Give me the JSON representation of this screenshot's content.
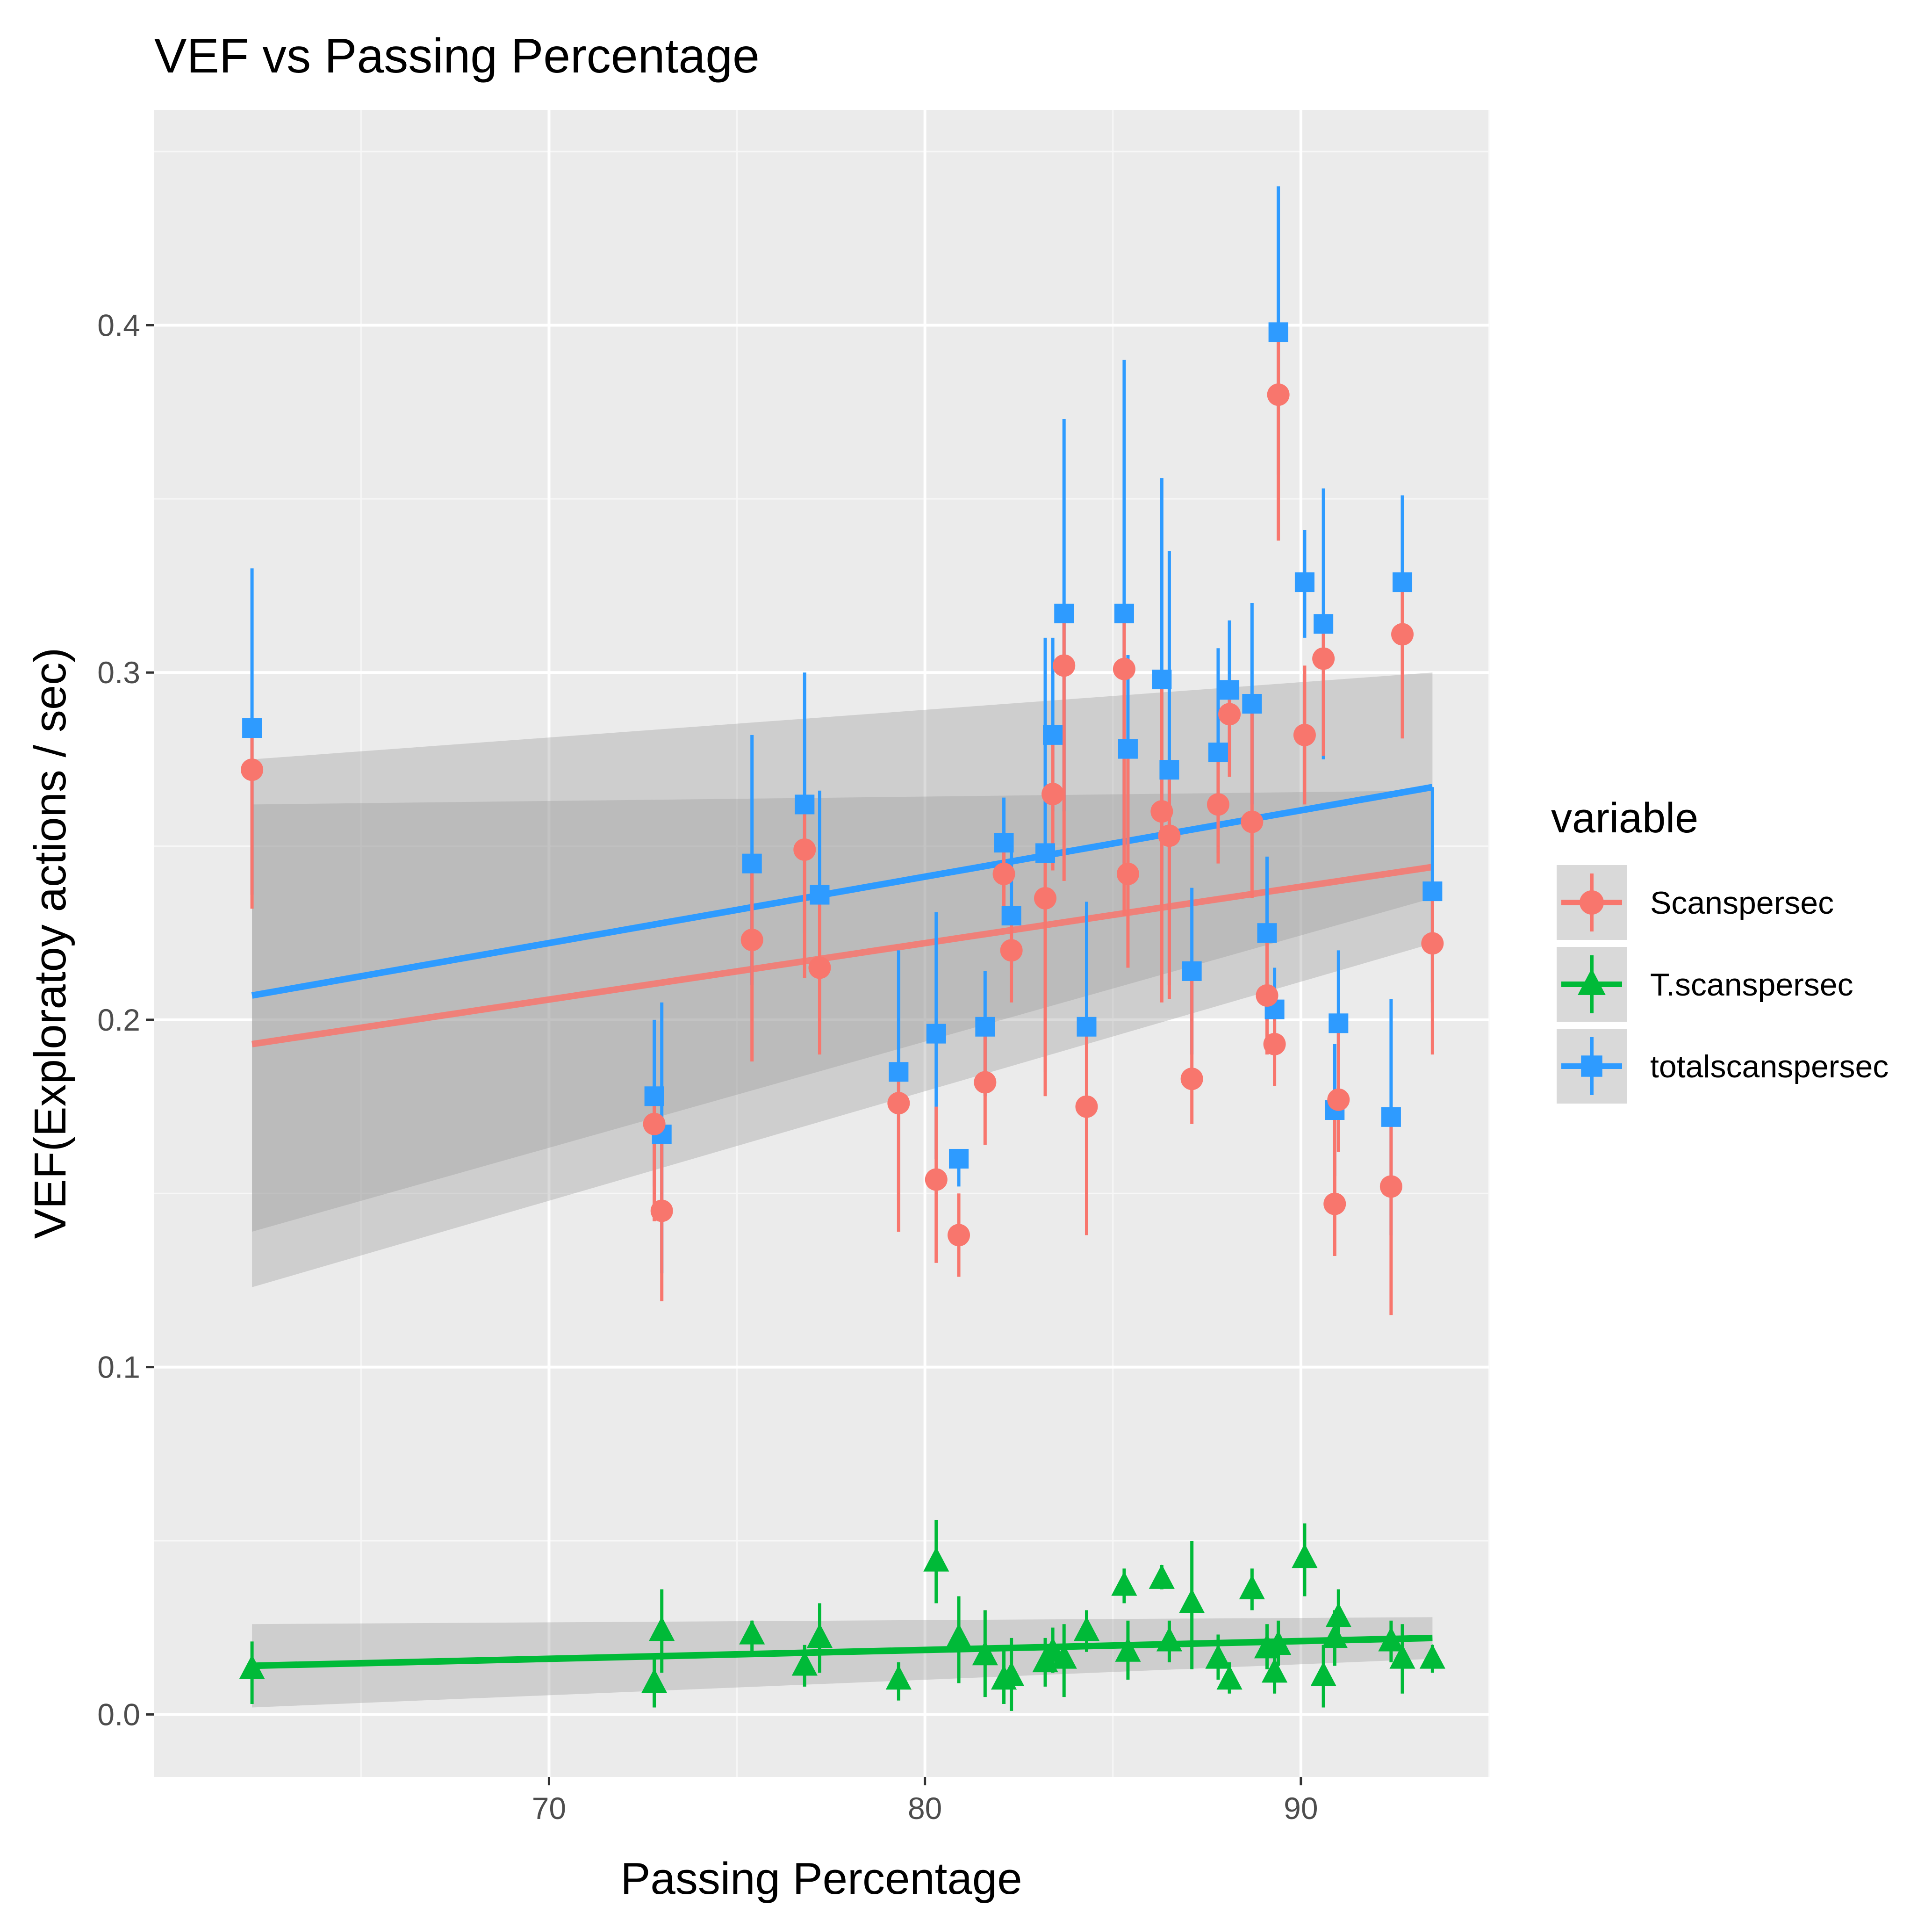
{
  "chart_data": {
    "type": "scatter",
    "title": "VEF vs Passing Percentage",
    "xlabel": "Passing Percentage",
    "ylabel": "VEF(Exploratoy actions / sec)",
    "xlim": [
      59.5,
      95.0
    ],
    "ylim": [
      -0.018,
      0.462
    ],
    "x_ticks": [
      70,
      80,
      90
    ],
    "y_ticks": [
      0.0,
      0.1,
      0.2,
      0.3,
      0.4
    ],
    "x_tick_labels": [
      "70",
      "80",
      "90"
    ],
    "y_tick_labels": [
      "0.0",
      "0.1",
      "0.2",
      "0.3",
      "0.4"
    ],
    "grid": true,
    "legend": {
      "title": "variable",
      "position": "right"
    },
    "series": [
      {
        "name": "totalscanspersec",
        "color": "#2e9bff",
        "shape": "square",
        "trend": {
          "x": [
            62.1,
            93.5
          ],
          "y": [
            0.207,
            0.267
          ],
          "ci_low": [
            0.139,
            0.235
          ],
          "ci_high": [
            0.275,
            0.3
          ]
        },
        "points": [
          {
            "x": 62.1,
            "y": 0.284,
            "lo": 0.236,
            "hi": 0.33
          },
          {
            "x": 72.8,
            "y": 0.178,
            "lo": 0.152,
            "hi": 0.2
          },
          {
            "x": 73.0,
            "y": 0.167,
            "lo": 0.127,
            "hi": 0.205
          },
          {
            "x": 75.4,
            "y": 0.245,
            "lo": 0.21,
            "hi": 0.282
          },
          {
            "x": 76.8,
            "y": 0.262,
            "lo": 0.225,
            "hi": 0.3
          },
          {
            "x": 77.2,
            "y": 0.236,
            "lo": 0.208,
            "hi": 0.266
          },
          {
            "x": 79.3,
            "y": 0.185,
            "lo": 0.148,
            "hi": 0.22
          },
          {
            "x": 80.3,
            "y": 0.196,
            "lo": 0.16,
            "hi": 0.231
          },
          {
            "x": 80.9,
            "y": 0.16,
            "lo": 0.152,
            "hi": 0.162
          },
          {
            "x": 81.6,
            "y": 0.198,
            "lo": 0.178,
            "hi": 0.214
          },
          {
            "x": 82.1,
            "y": 0.251,
            "lo": 0.238,
            "hi": 0.264
          },
          {
            "x": 82.3,
            "y": 0.23,
            "lo": 0.215,
            "hi": 0.252
          },
          {
            "x": 83.2,
            "y": 0.248,
            "lo": 0.185,
            "hi": 0.31
          },
          {
            "x": 83.4,
            "y": 0.282,
            "lo": 0.26,
            "hi": 0.31
          },
          {
            "x": 83.7,
            "y": 0.317,
            "lo": 0.26,
            "hi": 0.373
          },
          {
            "x": 84.3,
            "y": 0.198,
            "lo": 0.163,
            "hi": 0.234
          },
          {
            "x": 85.3,
            "y": 0.317,
            "lo": 0.245,
            "hi": 0.39
          },
          {
            "x": 85.4,
            "y": 0.278,
            "lo": 0.25,
            "hi": 0.305
          },
          {
            "x": 86.3,
            "y": 0.298,
            "lo": 0.243,
            "hi": 0.356
          },
          {
            "x": 86.5,
            "y": 0.272,
            "lo": 0.21,
            "hi": 0.335
          },
          {
            "x": 87.1,
            "y": 0.214,
            "lo": 0.19,
            "hi": 0.238
          },
          {
            "x": 87.8,
            "y": 0.277,
            "lo": 0.248,
            "hi": 0.307
          },
          {
            "x": 88.1,
            "y": 0.295,
            "lo": 0.275,
            "hi": 0.315
          },
          {
            "x": 88.7,
            "y": 0.291,
            "lo": 0.262,
            "hi": 0.32
          },
          {
            "x": 89.1,
            "y": 0.225,
            "lo": 0.205,
            "hi": 0.247
          },
          {
            "x": 89.3,
            "y": 0.203,
            "lo": 0.19,
            "hi": 0.215
          },
          {
            "x": 89.4,
            "y": 0.398,
            "lo": 0.357,
            "hi": 0.44
          },
          {
            "x": 90.1,
            "y": 0.326,
            "lo": 0.31,
            "hi": 0.341
          },
          {
            "x": 90.6,
            "y": 0.314,
            "lo": 0.275,
            "hi": 0.353
          },
          {
            "x": 90.9,
            "y": 0.174,
            "lo": 0.155,
            "hi": 0.193
          },
          {
            "x": 91.0,
            "y": 0.199,
            "lo": 0.178,
            "hi": 0.22
          },
          {
            "x": 92.4,
            "y": 0.172,
            "lo": 0.138,
            "hi": 0.206
          },
          {
            "x": 92.7,
            "y": 0.326,
            "lo": 0.3,
            "hi": 0.351
          },
          {
            "x": 93.5,
            "y": 0.237,
            "lo": 0.205,
            "hi": 0.267
          }
        ]
      },
      {
        "name": "Scanspersec",
        "color": "#f8766d",
        "shape": "circle",
        "trend": {
          "x": [
            62.1,
            93.5
          ],
          "y": [
            0.193,
            0.244
          ],
          "ci_low": [
            0.123,
            0.222
          ],
          "ci_high": [
            0.262,
            0.266
          ]
        },
        "points": [
          {
            "x": 62.1,
            "y": 0.272,
            "lo": 0.232,
            "hi": 0.282
          },
          {
            "x": 72.8,
            "y": 0.17,
            "lo": 0.142,
            "hi": 0.178
          },
          {
            "x": 73.0,
            "y": 0.145,
            "lo": 0.119,
            "hi": 0.17
          },
          {
            "x": 75.4,
            "y": 0.223,
            "lo": 0.188,
            "hi": 0.245
          },
          {
            "x": 76.8,
            "y": 0.249,
            "lo": 0.212,
            "hi": 0.26
          },
          {
            "x": 77.2,
            "y": 0.215,
            "lo": 0.19,
            "hi": 0.236
          },
          {
            "x": 79.3,
            "y": 0.176,
            "lo": 0.139,
            "hi": 0.185
          },
          {
            "x": 80.3,
            "y": 0.154,
            "lo": 0.13,
            "hi": 0.175
          },
          {
            "x": 80.9,
            "y": 0.138,
            "lo": 0.126,
            "hi": 0.15
          },
          {
            "x": 81.6,
            "y": 0.182,
            "lo": 0.164,
            "hi": 0.198
          },
          {
            "x": 82.1,
            "y": 0.242,
            "lo": 0.228,
            "hi": 0.251
          },
          {
            "x": 82.3,
            "y": 0.22,
            "lo": 0.205,
            "hi": 0.23
          },
          {
            "x": 83.2,
            "y": 0.235,
            "lo": 0.178,
            "hi": 0.248
          },
          {
            "x": 83.4,
            "y": 0.265,
            "lo": 0.243,
            "hi": 0.282
          },
          {
            "x": 83.7,
            "y": 0.302,
            "lo": 0.24,
            "hi": 0.317
          },
          {
            "x": 84.3,
            "y": 0.175,
            "lo": 0.138,
            "hi": 0.198
          },
          {
            "x": 85.3,
            "y": 0.301,
            "lo": 0.23,
            "hi": 0.317
          },
          {
            "x": 85.4,
            "y": 0.242,
            "lo": 0.215,
            "hi": 0.278
          },
          {
            "x": 86.3,
            "y": 0.26,
            "lo": 0.205,
            "hi": 0.298
          },
          {
            "x": 86.5,
            "y": 0.253,
            "lo": 0.206,
            "hi": 0.272
          },
          {
            "x": 87.1,
            "y": 0.183,
            "lo": 0.17,
            "hi": 0.214
          },
          {
            "x": 87.8,
            "y": 0.262,
            "lo": 0.245,
            "hi": 0.277
          },
          {
            "x": 88.1,
            "y": 0.288,
            "lo": 0.27,
            "hi": 0.295
          },
          {
            "x": 88.7,
            "y": 0.257,
            "lo": 0.235,
            "hi": 0.291
          },
          {
            "x": 89.1,
            "y": 0.207,
            "lo": 0.19,
            "hi": 0.225
          },
          {
            "x": 89.3,
            "y": 0.193,
            "lo": 0.181,
            "hi": 0.203
          },
          {
            "x": 89.4,
            "y": 0.38,
            "lo": 0.338,
            "hi": 0.398
          },
          {
            "x": 90.1,
            "y": 0.282,
            "lo": 0.262,
            "hi": 0.302
          },
          {
            "x": 90.6,
            "y": 0.304,
            "lo": 0.276,
            "hi": 0.314
          },
          {
            "x": 90.9,
            "y": 0.147,
            "lo": 0.132,
            "hi": 0.174
          },
          {
            "x": 91.0,
            "y": 0.177,
            "lo": 0.162,
            "hi": 0.199
          },
          {
            "x": 92.4,
            "y": 0.152,
            "lo": 0.115,
            "hi": 0.172
          },
          {
            "x": 92.7,
            "y": 0.311,
            "lo": 0.281,
            "hi": 0.326
          },
          {
            "x": 93.5,
            "y": 0.222,
            "lo": 0.19,
            "hi": 0.237
          }
        ]
      },
      {
        "name": "T.scanspersec",
        "color": "#00ba38",
        "shape": "triangle",
        "trend": {
          "x": [
            62.1,
            93.5
          ],
          "y": [
            0.014,
            0.022
          ],
          "ci_low": [
            0.002,
            0.016
          ],
          "ci_high": [
            0.026,
            0.028
          ]
        },
        "points": [
          {
            "x": 62.1,
            "y": 0.013,
            "lo": 0.003,
            "hi": 0.021
          },
          {
            "x": 72.8,
            "y": 0.009,
            "lo": 0.002,
            "hi": 0.016
          },
          {
            "x": 73.0,
            "y": 0.024,
            "lo": 0.012,
            "hi": 0.036
          },
          {
            "x": 75.4,
            "y": 0.023,
            "lo": 0.018,
            "hi": 0.027
          },
          {
            "x": 76.8,
            "y": 0.014,
            "lo": 0.008,
            "hi": 0.02
          },
          {
            "x": 77.2,
            "y": 0.022,
            "lo": 0.012,
            "hi": 0.032
          },
          {
            "x": 79.3,
            "y": 0.01,
            "lo": 0.004,
            "hi": 0.015
          },
          {
            "x": 80.3,
            "y": 0.044,
            "lo": 0.032,
            "hi": 0.056
          },
          {
            "x": 80.9,
            "y": 0.022,
            "lo": 0.009,
            "hi": 0.034
          },
          {
            "x": 81.6,
            "y": 0.017,
            "lo": 0.005,
            "hi": 0.03
          },
          {
            "x": 82.1,
            "y": 0.01,
            "lo": 0.003,
            "hi": 0.02
          },
          {
            "x": 82.3,
            "y": 0.011,
            "lo": 0.001,
            "hi": 0.022
          },
          {
            "x": 83.2,
            "y": 0.015,
            "lo": 0.008,
            "hi": 0.022
          },
          {
            "x": 83.4,
            "y": 0.018,
            "lo": 0.012,
            "hi": 0.025
          },
          {
            "x": 83.7,
            "y": 0.016,
            "lo": 0.005,
            "hi": 0.026
          },
          {
            "x": 84.3,
            "y": 0.024,
            "lo": 0.018,
            "hi": 0.03
          },
          {
            "x": 85.3,
            "y": 0.037,
            "lo": 0.032,
            "hi": 0.042
          },
          {
            "x": 85.4,
            "y": 0.018,
            "lo": 0.01,
            "hi": 0.027
          },
          {
            "x": 86.3,
            "y": 0.039,
            "lo": 0.036,
            "hi": 0.043
          },
          {
            "x": 86.5,
            "y": 0.021,
            "lo": 0.015,
            "hi": 0.027
          },
          {
            "x": 87.1,
            "y": 0.032,
            "lo": 0.013,
            "hi": 0.05
          },
          {
            "x": 87.8,
            "y": 0.016,
            "lo": 0.01,
            "hi": 0.023
          },
          {
            "x": 88.1,
            "y": 0.01,
            "lo": 0.006,
            "hi": 0.015
          },
          {
            "x": 88.7,
            "y": 0.036,
            "lo": 0.03,
            "hi": 0.042
          },
          {
            "x": 89.1,
            "y": 0.019,
            "lo": 0.013,
            "hi": 0.026
          },
          {
            "x": 89.3,
            "y": 0.012,
            "lo": 0.006,
            "hi": 0.018
          },
          {
            "x": 89.4,
            "y": 0.02,
            "lo": 0.014,
            "hi": 0.027
          },
          {
            "x": 90.1,
            "y": 0.045,
            "lo": 0.034,
            "hi": 0.055
          },
          {
            "x": 90.6,
            "y": 0.011,
            "lo": 0.002,
            "hi": 0.02
          },
          {
            "x": 90.9,
            "y": 0.022,
            "lo": 0.014,
            "hi": 0.03
          },
          {
            "x": 91.0,
            "y": 0.028,
            "lo": 0.02,
            "hi": 0.036
          },
          {
            "x": 92.4,
            "y": 0.021,
            "lo": 0.015,
            "hi": 0.027
          },
          {
            "x": 92.7,
            "y": 0.016,
            "lo": 0.006,
            "hi": 0.026
          },
          {
            "x": 93.5,
            "y": 0.016,
            "lo": 0.012,
            "hi": 0.02
          }
        ]
      }
    ]
  },
  "legend_items": [
    {
      "label": "Scanspersec",
      "color": "#f8766d",
      "shape": "circle"
    },
    {
      "label": "T.scanspersec",
      "color": "#00ba38",
      "shape": "triangle"
    },
    {
      "label": "totalscanspersec",
      "color": "#2e9bff",
      "shape": "square"
    }
  ]
}
